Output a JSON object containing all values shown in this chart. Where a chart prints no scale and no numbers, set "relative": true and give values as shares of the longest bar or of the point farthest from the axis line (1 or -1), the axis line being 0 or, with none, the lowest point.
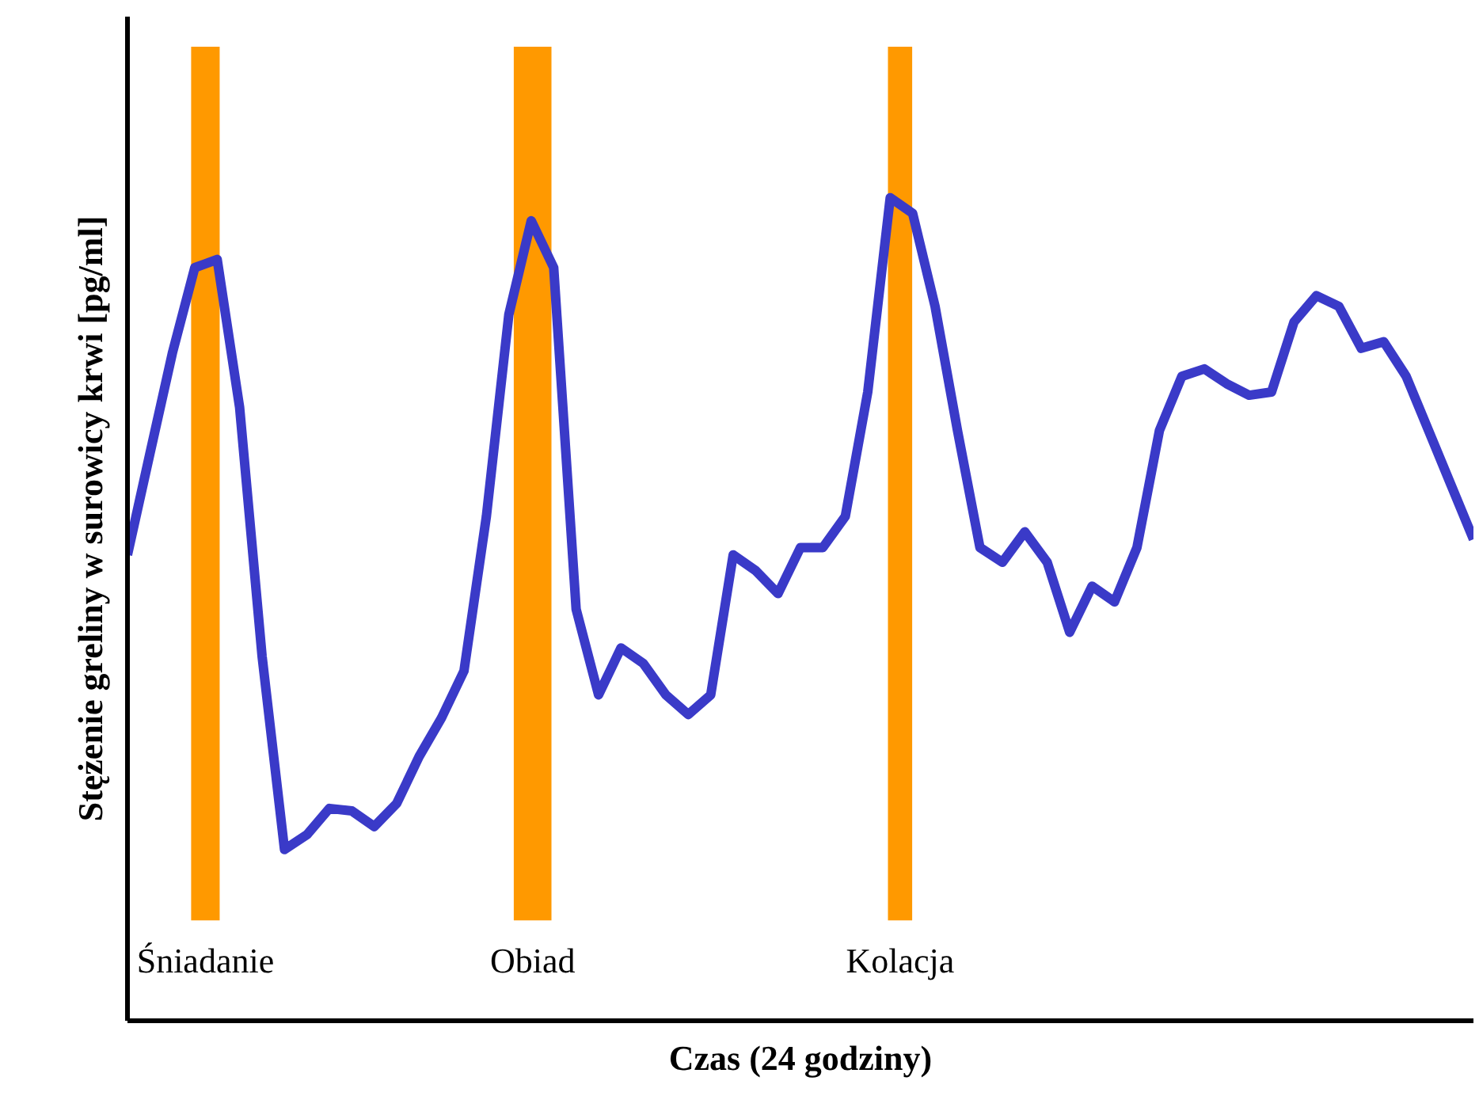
{
  "chart_data": {
    "type": "line",
    "relative": true,
    "xlabel": "Czas (24 godziny)",
    "ylabel": "Stężenie greliny w surowicy krwi [pg/ml]",
    "categories": [
      null,
      null,
      null,
      null,
      null,
      null,
      null,
      null,
      null,
      null,
      null,
      null,
      null,
      null,
      null,
      null,
      null,
      null,
      null,
      null,
      null,
      null,
      null,
      null,
      null,
      null,
      null,
      null,
      null,
      null,
      null,
      null,
      null,
      null,
      null,
      null,
      null,
      null,
      null,
      null,
      null,
      null,
      null,
      null,
      null,
      null,
      null,
      null,
      null,
      null,
      null,
      null,
      null,
      null,
      null,
      null,
      null,
      null,
      null,
      null,
      null
    ],
    "series": [
      {
        "color": "#3a3ac8",
        "values": [
          0.566,
          0.689,
          0.811,
          0.915,
          0.925,
          0.745,
          0.443,
          0.208,
          0.226,
          0.258,
          0.255,
          0.236,
          0.264,
          0.321,
          0.368,
          0.425,
          0.613,
          0.858,
          0.972,
          0.915,
          0.5,
          0.396,
          0.453,
          0.434,
          0.396,
          0.372,
          0.396,
          0.566,
          0.547,
          0.519,
          0.575,
          0.575,
          0.613,
          0.764,
          1,
          0.981,
          0.868,
          0.717,
          0.575,
          0.557,
          0.594,
          0.557,
          0.472,
          0.528,
          0.509,
          0.575,
          0.717,
          0.783,
          0.792,
          0.774,
          0.76,
          0.764,
          0.849,
          0.881,
          0.868,
          0.817,
          0.825,
          0.783,
          0.717,
          0.651,
          0.585
        ]
      }
    ],
    "annotations": [
      "Śniadanie",
      "Obiad",
      "Kolacja"
    ]
  }
}
